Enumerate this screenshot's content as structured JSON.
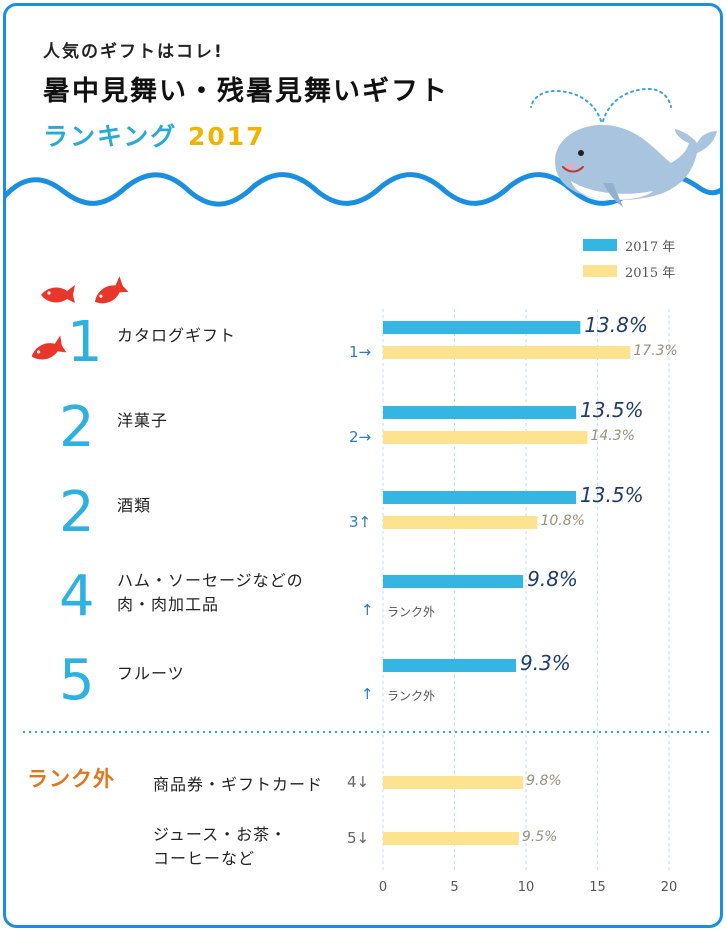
{
  "header": {
    "subtitle": "人気のギフトはコレ!",
    "title": "暑中見舞い・残暑見舞いギフト",
    "ranking_label": "ランキング",
    "year": "2017"
  },
  "colors": {
    "blue": "#29a9d6",
    "bar_2017": "#35b5e2",
    "bar_2015": "#fde28f",
    "wave": "#1a8fe0",
    "orange": "#e0761f",
    "fish": "#e8362a"
  },
  "chart_data": {
    "type": "bar",
    "orientation": "horizontal",
    "legend": {
      "position": "top-right",
      "entries": [
        "2017 年",
        "2015 年"
      ]
    },
    "xlim": [
      0,
      20
    ],
    "xticks": [
      "0",
      "5",
      "10",
      "15",
      "20"
    ],
    "grid": true,
    "rows": [
      {
        "rank": "1",
        "name": [
          "カタログギフト"
        ],
        "prev": "1→",
        "v2017": 13.8,
        "v2017_label": "13.8%",
        "v2015": 17.3,
        "v2015_label": "17.3%"
      },
      {
        "rank": "2",
        "name": [
          "洋菓子"
        ],
        "prev": "2→",
        "v2017": 13.5,
        "v2017_label": "13.5%",
        "v2015": 14.3,
        "v2015_label": "14.3%"
      },
      {
        "rank": "2",
        "name": [
          "酒類"
        ],
        "prev": "3↑",
        "v2017": 13.5,
        "v2017_label": "13.5%",
        "v2015": 10.8,
        "v2015_label": "10.8%"
      },
      {
        "rank": "4",
        "name": [
          "ハム・ソーセージなどの",
          "肉・肉加工品"
        ],
        "prev": "↑",
        "prev_note": "ランク外",
        "v2017": 9.8,
        "v2017_label": "9.8%"
      },
      {
        "rank": "5",
        "name": [
          "フルーツ"
        ],
        "prev": "↑",
        "prev_note": "ランク外",
        "v2017": 9.3,
        "v2017_label": "9.3%"
      }
    ],
    "out_of_rank": {
      "title": "ランク外",
      "rows": [
        {
          "name": [
            "商品券・ギフトカード"
          ],
          "prev": "4↓",
          "v2015": 9.8,
          "v2015_label": "9.8%"
        },
        {
          "name": [
            "ジュース・お茶・",
            "コーヒーなど"
          ],
          "prev": "5↓",
          "v2015": 9.5,
          "v2015_label": "9.5%"
        }
      ]
    }
  }
}
